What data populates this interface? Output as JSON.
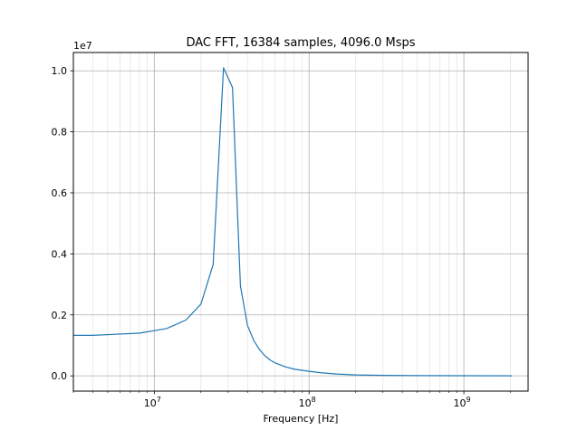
{
  "chart_data": {
    "type": "line",
    "title": "DAC FFT, 16384 samples, 4096.0 Msps",
    "xlabel": "Frequency [Hz]",
    "ylabel": "",
    "x_scale": "log",
    "xlim": [
      3000000,
      2600000000
    ],
    "ylim": [
      -500000,
      10600000
    ],
    "y_offset_label": "1e7",
    "x_major_ticks": [
      {
        "value": 10000000,
        "base": "10",
        "exp": "7"
      },
      {
        "value": 100000000,
        "base": "10",
        "exp": "8"
      },
      {
        "value": 1000000000,
        "base": "10",
        "exp": "9"
      }
    ],
    "y_ticks": [
      {
        "value": 0,
        "label": "0.0"
      },
      {
        "value": 2000000,
        "label": "0.2"
      },
      {
        "value": 4000000,
        "label": "0.4"
      },
      {
        "value": 6000000,
        "label": "0.6"
      },
      {
        "value": 8000000,
        "label": "0.8"
      },
      {
        "value": 10000000,
        "label": "1.0"
      }
    ],
    "grid": "major and minor",
    "color": "#1f77b4",
    "series": [
      {
        "x": [
          3000000,
          4000000,
          8000000,
          12000000,
          16000000,
          20000000,
          24000000,
          28000000,
          32000000,
          36000000,
          40000000,
          44000000,
          48000000,
          52000000,
          56000000,
          60000000,
          70000000,
          80000000,
          100000000,
          120000000,
          150000000,
          200000000,
          300000000,
          500000000,
          1000000000,
          2048000000
        ],
        "values": [
          1330000,
          1330000,
          1400000,
          1550000,
          1830000,
          2350000,
          3650000,
          10100000,
          9450000,
          2950000,
          1650000,
          1150000,
          850000,
          650000,
          520000,
          430000,
          300000,
          220000,
          150000,
          100000,
          60000,
          30000,
          15000,
          8000,
          4000,
          2000
        ]
      }
    ]
  }
}
